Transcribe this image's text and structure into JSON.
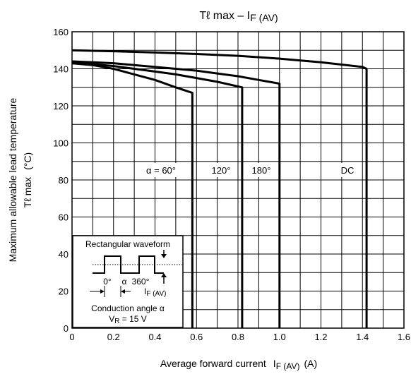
{
  "chart_data": {
    "type": "line",
    "title": "Tℓ max – IF (AV)",
    "title_main": "Tℓ max – I",
    "title_sub": "F (AV)",
    "xlabel_main": "Average forward current",
    "xlabel_sym": "I",
    "xlabel_sub": "F (AV)",
    "xlabel_unit": "(A)",
    "ylabel_line1": "Maximum allowable lead temperature",
    "ylabel_line2_sym": "Tℓ max",
    "ylabel_line2_unit": "(°C)",
    "xlim": [
      0,
      1.6
    ],
    "ylim": [
      0,
      160
    ],
    "x_ticks": [
      0,
      0.2,
      0.4,
      0.6,
      0.8,
      1.0,
      1.2,
      1.4,
      1.6
    ],
    "x_tick_labels": [
      "0",
      "0.2",
      "0.4",
      "0.6",
      "0.8",
      "1.0",
      "1.2",
      "1.4",
      "1.6"
    ],
    "y_ticks": [
      0,
      20,
      40,
      60,
      80,
      100,
      120,
      140,
      160
    ],
    "y_tick_labels": [
      "0",
      "20",
      "40",
      "60",
      "80",
      "100",
      "120",
      "140",
      "160"
    ],
    "grid": true,
    "series": [
      {
        "name": "α = 60°",
        "x": [
          0,
          0.1,
          0.2,
          0.3,
          0.4,
          0.5,
          0.58,
          0.58
        ],
        "y": [
          143,
          142,
          140,
          137,
          134,
          130,
          127,
          0
        ]
      },
      {
        "name": "120°",
        "x": [
          0,
          0.1,
          0.2,
          0.3,
          0.4,
          0.5,
          0.6,
          0.7,
          0.82,
          0.82
        ],
        "y": [
          143,
          142.5,
          141.5,
          140,
          138.5,
          137,
          135,
          133,
          130,
          0
        ]
      },
      {
        "name": "180°",
        "x": [
          0,
          0.1,
          0.2,
          0.3,
          0.4,
          0.5,
          0.6,
          0.7,
          0.8,
          0.9,
          1.0,
          1.0
        ],
        "y": [
          144,
          143.5,
          143,
          142,
          141,
          140,
          139,
          137.5,
          136,
          134,
          132,
          0
        ]
      },
      {
        "name": "DC",
        "x": [
          0,
          0.2,
          0.4,
          0.6,
          0.8,
          1.0,
          1.2,
          1.4,
          1.42,
          1.42
        ],
        "y": [
          150,
          149.5,
          148.8,
          148,
          147,
          145.5,
          143.5,
          141,
          140,
          0
        ]
      }
    ],
    "inset": {
      "title": "Rectangular waveform",
      "label_0": "0°",
      "label_alpha": "α",
      "label_360": "360°",
      "label_if_sym": "I",
      "label_if_sub": "F (AV)",
      "caption_line1": "Conduction angle α",
      "caption_vr_sym": "V",
      "caption_vr_sub": "R",
      "caption_vr_value": " = 15 V"
    }
  }
}
